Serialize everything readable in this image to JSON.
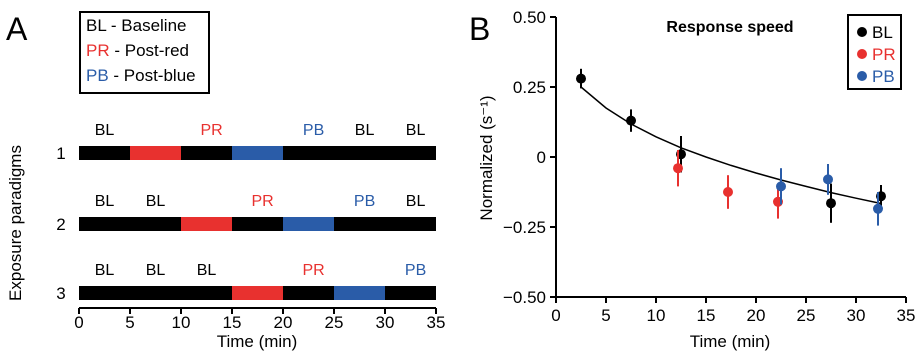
{
  "colors": {
    "baseline": "#000000",
    "red": "#e8312f",
    "blue": "#2a5ca8",
    "text_red": "#e8312f",
    "text_blue": "#2a5ca8"
  },
  "panel_a": {
    "panel_label": "A",
    "legend": [
      {
        "abbr": "BL",
        "desc": "- Baseline",
        "color_key": "baseline"
      },
      {
        "abbr": "PR",
        "desc": "- Post-red",
        "color_key": "red"
      },
      {
        "abbr": "PB",
        "desc": "- Post-blue",
        "color_key": "blue"
      }
    ],
    "ylabel": "Exposure paradigms",
    "xlabel": "Time (min)",
    "xticks": [
      0,
      5,
      10,
      15,
      20,
      25,
      30,
      35
    ],
    "xlim": [
      0,
      35
    ]
  },
  "panel_b": {
    "panel_label": "B",
    "title": "Response speed",
    "ylabel": "Normalized (s⁻¹)",
    "xlabel": "Time (min)",
    "xticks": [
      0,
      5,
      10,
      15,
      20,
      25,
      30,
      35
    ],
    "yticks": [
      "0.50",
      "0.25",
      "0",
      "−0.25",
      "−0.50"
    ],
    "ytick_values": [
      0.5,
      0.25,
      0,
      -0.25,
      -0.5
    ],
    "legend": [
      {
        "label": "BL",
        "color_key": "baseline"
      },
      {
        "label": "PR",
        "color_key": "red"
      },
      {
        "label": "PB",
        "color_key": "blue"
      }
    ]
  },
  "chart_data": [
    {
      "type": "timeline",
      "xlim": [
        0,
        35
      ],
      "paradigms": [
        {
          "label": "1",
          "segments": [
            {
              "start": 0,
              "end": 5,
              "cond": "BL"
            },
            {
              "start": 5,
              "end": 10,
              "cond": "PR"
            },
            {
              "start": 10,
              "end": 15,
              "cond": "BL"
            },
            {
              "start": 15,
              "end": 20,
              "cond": "PB"
            },
            {
              "start": 20,
              "end": 35,
              "cond": "BL"
            }
          ],
          "labels": [
            {
              "text": "BL",
              "x": 2.5,
              "cond": "BL"
            },
            {
              "text": "PR",
              "x": 13,
              "cond": "PR"
            },
            {
              "text": "PB",
              "x": 23,
              "cond": "PB"
            },
            {
              "text": "BL",
              "x": 28,
              "cond": "BL"
            },
            {
              "text": "BL",
              "x": 33,
              "cond": "BL"
            }
          ]
        },
        {
          "label": "2",
          "segments": [
            {
              "start": 0,
              "end": 10,
              "cond": "BL"
            },
            {
              "start": 10,
              "end": 15,
              "cond": "PR"
            },
            {
              "start": 15,
              "end": 20,
              "cond": "BL"
            },
            {
              "start": 20,
              "end": 25,
              "cond": "PB"
            },
            {
              "start": 25,
              "end": 35,
              "cond": "BL"
            }
          ],
          "labels": [
            {
              "text": "BL",
              "x": 2.5,
              "cond": "BL"
            },
            {
              "text": "BL",
              "x": 7.5,
              "cond": "BL"
            },
            {
              "text": "PR",
              "x": 18,
              "cond": "PR"
            },
            {
              "text": "PB",
              "x": 28,
              "cond": "PB"
            },
            {
              "text": "BL",
              "x": 33,
              "cond": "BL"
            }
          ]
        },
        {
          "label": "3",
          "segments": [
            {
              "start": 0,
              "end": 15,
              "cond": "BL"
            },
            {
              "start": 15,
              "end": 20,
              "cond": "PR"
            },
            {
              "start": 20,
              "end": 25,
              "cond": "BL"
            },
            {
              "start": 25,
              "end": 30,
              "cond": "PB"
            },
            {
              "start": 30,
              "end": 35,
              "cond": "BL"
            }
          ],
          "labels": [
            {
              "text": "BL",
              "x": 2.5,
              "cond": "BL"
            },
            {
              "text": "BL",
              "x": 7.5,
              "cond": "BL"
            },
            {
              "text": "BL",
              "x": 12.5,
              "cond": "BL"
            },
            {
              "text": "PR",
              "x": 23,
              "cond": "PR"
            },
            {
              "text": "PB",
              "x": 33,
              "cond": "PB"
            }
          ]
        }
      ]
    },
    {
      "type": "scatter",
      "title": "Response speed",
      "xlabel": "Time (min)",
      "ylabel": "Normalized (s⁻¹)",
      "xlim": [
        0,
        35
      ],
      "ylim": [
        -0.5,
        0.5
      ],
      "legend_position": "top-right",
      "series": [
        {
          "name": "BL",
          "color_key": "baseline",
          "points": [
            {
              "x": 2.5,
              "y": 0.28,
              "err": 0.035
            },
            {
              "x": 7.5,
              "y": 0.13,
              "err": 0.04
            },
            {
              "x": 12.5,
              "y": 0.01,
              "err": 0.065
            },
            {
              "x": 27.5,
              "y": -0.165,
              "err": 0.07
            },
            {
              "x": 32.5,
              "y": -0.14,
              "err": 0.04
            }
          ]
        },
        {
          "name": "PR",
          "color_key": "red",
          "points": [
            {
              "x": 12.2,
              "y": -0.04,
              "err": 0.065
            },
            {
              "x": 17.2,
              "y": -0.125,
              "err": 0.06
            },
            {
              "x": 22.2,
              "y": -0.16,
              "err": 0.06
            }
          ]
        },
        {
          "name": "PB",
          "color_key": "blue",
          "points": [
            {
              "x": 22.5,
              "y": -0.105,
              "err": 0.065
            },
            {
              "x": 27.2,
              "y": -0.08,
              "err": 0.055
            },
            {
              "x": 32.2,
              "y": -0.185,
              "err": 0.06
            }
          ]
        }
      ],
      "fit_curve": {
        "x": [
          2.5,
          5,
          7.5,
          10,
          12.5,
          15,
          17.5,
          20,
          22.5,
          25,
          27.5,
          30,
          32.5
        ],
        "y": [
          0.25,
          0.175,
          0.118,
          0.072,
          0.033,
          0.0,
          -0.03,
          -0.057,
          -0.082,
          -0.105,
          -0.127,
          -0.147,
          -0.166
        ]
      }
    }
  ]
}
